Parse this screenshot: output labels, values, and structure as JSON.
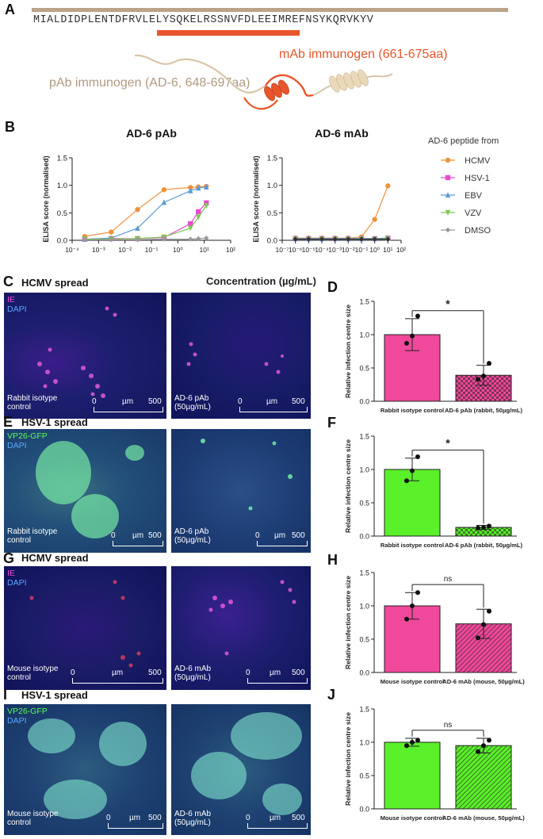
{
  "panels": {
    "A": {
      "label": "A",
      "sequence": "MIALDIDPLENTDFRVLELYSQKELRSSNVFDLEEIMREFNSYKQRVKYV",
      "mab_label": "mAb immunogen (661-675aa)",
      "pab_label": "pAb immunogen (AD-6, 648-697aa)",
      "colors": {
        "pab": "#b9a38a",
        "mab": "#e8552b"
      }
    },
    "B": {
      "label": "B",
      "legend_title": "AD-6 peptide from",
      "x_label": "Concentration (µg/mL)"
    },
    "C": {
      "label": "C",
      "title": "HCMV spread",
      "stain1": "IE",
      "stain2": "DAPI",
      "left_caption": "Rabbit isotype\ncontrol",
      "right_caption": "AD-6 pAb\n(50µg/mL)",
      "scale_left": "0",
      "scale_unit": "µm",
      "scale_right": "500"
    },
    "D": {
      "label": "D"
    },
    "E": {
      "label": "E",
      "title": "HSV-1 spread",
      "stain1": "VP26-GFP",
      "stain2": "DAPI",
      "left_caption": "Rabbit isotype\ncontrol",
      "right_caption": "AD-6 pAb\n(50µg/mL)",
      "scale_left": "0",
      "scale_unit": "µm",
      "scale_right": "500"
    },
    "F": {
      "label": "F"
    },
    "G": {
      "label": "G",
      "title": "HCMV spread",
      "stain1": "IE",
      "stain2": "DAPI",
      "left_caption": "Mouse isotype\ncontrol",
      "right_caption": "AD-6 mAb\n(50µg/mL)",
      "scale_left": "0",
      "scale_unit": "µm",
      "scale_right": "500"
    },
    "H": {
      "label": "H"
    },
    "I": {
      "label": "I",
      "title": "HSV-1 spread",
      "stain1": "VP26-GFP",
      "stain2": "DAPI",
      "left_caption": "Mouse isotype\ncontrol",
      "right_caption": "AD-6 mAb\n(50µg/mL)",
      "scale_left": "0",
      "scale_unit": "µm",
      "scale_right": "500"
    },
    "J": {
      "label": "J"
    }
  },
  "chart_data": [
    {
      "id": "B-left",
      "type": "line",
      "title": "AD-6 pAb",
      "xlabel": "",
      "ylabel": "ELISA score (normalised)",
      "xscale": "log",
      "xlim": [
        0.0001,
        100
      ],
      "ylim": [
        0,
        1.5
      ],
      "xticks": [
        "10⁻⁴",
        "10⁻³",
        "10⁻²",
        "10⁻¹",
        "10⁰",
        "10¹",
        "10²"
      ],
      "yticks": [
        "0.0",
        "0.5",
        "1.0",
        "1.5"
      ],
      "series": [
        {
          "name": "HCMV",
          "color": "#f0923a",
          "marker": "circle",
          "x": [
            0.0003,
            0.003,
            0.03,
            0.3,
            3,
            6,
            12
          ],
          "y": [
            0.07,
            0.15,
            0.56,
            0.92,
            0.96,
            0.97,
            0.98
          ]
        },
        {
          "name": "HSV-1",
          "color": "#e84bd0",
          "marker": "square",
          "x": [
            0.0003,
            0.003,
            0.03,
            0.3,
            3,
            6,
            12
          ],
          "y": [
            0.02,
            0.03,
            0.03,
            0.05,
            0.3,
            0.52,
            0.68
          ]
        },
        {
          "name": "EBV",
          "color": "#5b9bd5",
          "marker": "triangle",
          "x": [
            0.0003,
            0.003,
            0.03,
            0.3,
            3,
            6,
            12
          ],
          "y": [
            0.02,
            0.04,
            0.22,
            0.69,
            0.9,
            0.95,
            0.97
          ]
        },
        {
          "name": "VZV",
          "color": "#7ec850",
          "marker": "triangle-down",
          "x": [
            0.0003,
            0.003,
            0.03,
            0.3,
            3,
            6,
            12
          ],
          "y": [
            0.02,
            0.02,
            0.03,
            0.06,
            0.22,
            0.42,
            0.63
          ]
        },
        {
          "name": "DMSO",
          "color": "#999999",
          "marker": "diamond",
          "x": [
            0.0003,
            0.003,
            0.03,
            0.3,
            3,
            6,
            12
          ],
          "y": [
            0.01,
            0.01,
            0.01,
            0.02,
            0.02,
            0.03,
            0.04
          ]
        }
      ]
    },
    {
      "id": "B-right",
      "type": "line",
      "title": "AD-6 mAb",
      "xlabel": "",
      "ylabel": "ELISA score (normalised)",
      "xscale": "log",
      "xlim": [
        1e-07,
        100
      ],
      "ylim": [
        0,
        1.5
      ],
      "xticks": [
        "10⁻⁷",
        "10⁻⁶",
        "10⁻⁵",
        "10⁻⁴",
        "10⁻³",
        "10⁻²",
        "10⁻¹",
        "10⁰",
        "10¹",
        "10²"
      ],
      "yticks": [
        "0.0",
        "0.5",
        "1.0",
        "1.5"
      ],
      "series": [
        {
          "name": "HCMV",
          "color": "#f0923a",
          "marker": "circle",
          "x": [
            1e-06,
            1e-05,
            0.0001,
            0.001,
            0.01,
            0.1,
            1,
            10
          ],
          "y": [
            0.04,
            0.04,
            0.04,
            0.04,
            0.04,
            0.06,
            0.38,
            0.99
          ]
        },
        {
          "name": "HSV-1",
          "color": "#e84bd0",
          "marker": "square",
          "x": [
            1e-06,
            1e-05,
            0.0001,
            0.001,
            0.01,
            0.1,
            1,
            10
          ],
          "y": [
            0.03,
            0.03,
            0.03,
            0.03,
            0.03,
            0.03,
            0.03,
            0.04
          ]
        },
        {
          "name": "EBV",
          "color": "#5b9bd5",
          "marker": "triangle",
          "x": [
            1e-06,
            1e-05,
            0.0001,
            0.001,
            0.01,
            0.1,
            1,
            10
          ],
          "y": [
            0.03,
            0.03,
            0.03,
            0.03,
            0.03,
            0.03,
            0.03,
            0.04
          ]
        },
        {
          "name": "VZV",
          "color": "#7ec850",
          "marker": "triangle-down",
          "x": [
            1e-06,
            1e-05,
            0.0001,
            0.001,
            0.01,
            0.1,
            1,
            10
          ],
          "y": [
            0.02,
            0.02,
            0.02,
            0.02,
            0.02,
            0.02,
            0.02,
            0.03
          ]
        },
        {
          "name": "DMSO",
          "color": "#333333",
          "marker": "diamond",
          "x": [
            1e-06,
            1e-05,
            0.0001,
            0.001,
            0.01,
            0.1,
            1,
            10
          ],
          "y": [
            0.02,
            0.02,
            0.02,
            0.02,
            0.02,
            0.02,
            0.02,
            0.02
          ]
        }
      ]
    },
    {
      "id": "D",
      "type": "bar",
      "ylabel": "Relative infection centre size",
      "categories": [
        "Rabbit isotype control",
        "AD-6 pAb (rabbit, 50µg/mL)"
      ],
      "values": [
        1.0,
        0.39
      ],
      "errors": [
        0.24,
        0.15
      ],
      "points": [
        [
          0.87,
          0.98,
          1.28
        ],
        [
          0.33,
          0.38,
          0.57
        ]
      ],
      "colors": [
        "#f0489a",
        "#f0489a"
      ],
      "patterns": [
        "solid",
        "checker"
      ],
      "ylim": [
        0,
        1.5
      ],
      "yticks": [
        "0.0",
        "0.5",
        "1.0",
        "1.5"
      ],
      "significance": "*"
    },
    {
      "id": "F",
      "type": "bar",
      "ylabel": "Relative infection centre size",
      "categories": [
        "Rabbit isotype control",
        "AD-6 pAb (rabbit, 50µg/mL)"
      ],
      "values": [
        1.0,
        0.13
      ],
      "errors": [
        0.17,
        0.03
      ],
      "points": [
        [
          0.83,
          0.98,
          1.19
        ],
        [
          0.12,
          0.13,
          0.15
        ]
      ],
      "colors": [
        "#5af02a",
        "#5af02a"
      ],
      "patterns": [
        "solid",
        "checker"
      ],
      "ylim": [
        0,
        1.5
      ],
      "yticks": [
        "0.0",
        "0.5",
        "1.0",
        "1.5"
      ],
      "significance": "*"
    },
    {
      "id": "H",
      "type": "bar",
      "ylabel": "Relative infection centre size",
      "categories": [
        "Mouse isotype control",
        "AD-6 mAb (mouse, 50µg/mL)"
      ],
      "values": [
        1.0,
        0.73
      ],
      "errors": [
        0.2,
        0.22
      ],
      "points": [
        [
          0.8,
          1.0,
          1.2
        ],
        [
          0.52,
          0.72,
          0.92
        ]
      ],
      "colors": [
        "#f0489a",
        "#f0489a"
      ],
      "patterns": [
        "solid",
        "hatch"
      ],
      "ylim": [
        0,
        1.5
      ],
      "yticks": [
        "0.0",
        "0.5",
        "1.0",
        "1.5"
      ],
      "significance": "ns"
    },
    {
      "id": "J",
      "type": "bar",
      "ylabel": "Relative infection centre size",
      "categories": [
        "Mouse isotype control",
        "AD-6 mAb (mouse, 50µg/mL)"
      ],
      "values": [
        1.0,
        0.95
      ],
      "errors": [
        0.06,
        0.11
      ],
      "points": [
        [
          0.95,
          1.0,
          1.03
        ],
        [
          0.86,
          0.95,
          1.03
        ]
      ],
      "colors": [
        "#5af02a",
        "#5af02a"
      ],
      "patterns": [
        "solid",
        "hatch"
      ],
      "ylim": [
        0,
        1.5
      ],
      "yticks": [
        "0.0",
        "0.5",
        "1.0",
        "1.5"
      ],
      "significance": "ns"
    }
  ]
}
